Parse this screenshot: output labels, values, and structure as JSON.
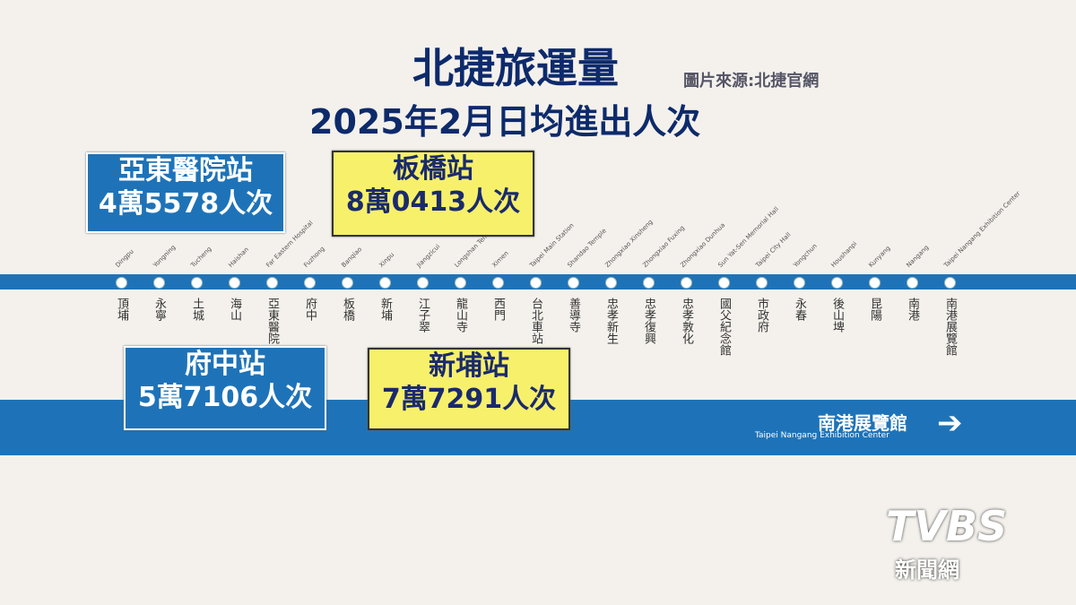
{
  "header": {
    "title": "北捷旅運量",
    "source": "圖片來源:北捷官網",
    "subtitle": "2025年2月日均進出人次"
  },
  "stations": [
    {
      "zh": "頂埔",
      "en": "Dingpu"
    },
    {
      "zh": "永寧",
      "en": "Yongning"
    },
    {
      "zh": "土城",
      "en": "Tucheng"
    },
    {
      "zh": "海山",
      "en": "Haishan"
    },
    {
      "zh": "亞東醫院",
      "en": "Far Eastern Hospital"
    },
    {
      "zh": "府中",
      "en": "Fuzhong"
    },
    {
      "zh": "板橋",
      "en": "Banqiao"
    },
    {
      "zh": "新埔",
      "en": "Xinpu"
    },
    {
      "zh": "江子翠",
      "en": "Jiangzicui"
    },
    {
      "zh": "龍山寺",
      "en": "Longshan Temple"
    },
    {
      "zh": "西門",
      "en": "Ximen"
    },
    {
      "zh": "台北車站",
      "en": "Taipei Main Station"
    },
    {
      "zh": "善導寺",
      "en": "Shandao Temple"
    },
    {
      "zh": "忠孝新生",
      "en": "Zhongxiao Xinsheng"
    },
    {
      "zh": "忠孝復興",
      "en": "Zhongxiao Fuxing"
    },
    {
      "zh": "忠孝敦化",
      "en": "Zhongxiao Dunhua"
    },
    {
      "zh": "國父紀念館",
      "en": "Sun Yat-Sen Memorial Hall"
    },
    {
      "zh": "市政府",
      "en": "Taipei City Hall"
    },
    {
      "zh": "永春",
      "en": "Yongchun"
    },
    {
      "zh": "後山埤",
      "en": "Houshanpi"
    },
    {
      "zh": "昆陽",
      "en": "Kunyang"
    },
    {
      "zh": "南港",
      "en": "Nangang"
    },
    {
      "zh": "南港展覽館",
      "en": "Taipei Nangang Exhibition Center"
    }
  ],
  "callouts": [
    {
      "station": "亞東醫院站",
      "count": "4萬5578人次"
    },
    {
      "station": "板橋站",
      "count": "8萬0413人次"
    },
    {
      "station": "府中站",
      "count": "5萬7106人次"
    },
    {
      "station": "新埔站",
      "count": "7萬7291人次"
    }
  ],
  "direction": {
    "zh": "南港展覽館",
    "en": "Taipei Nangang Exhibition Center"
  },
  "logo": {
    "brand": "TVBS",
    "sub": "新聞網"
  }
}
